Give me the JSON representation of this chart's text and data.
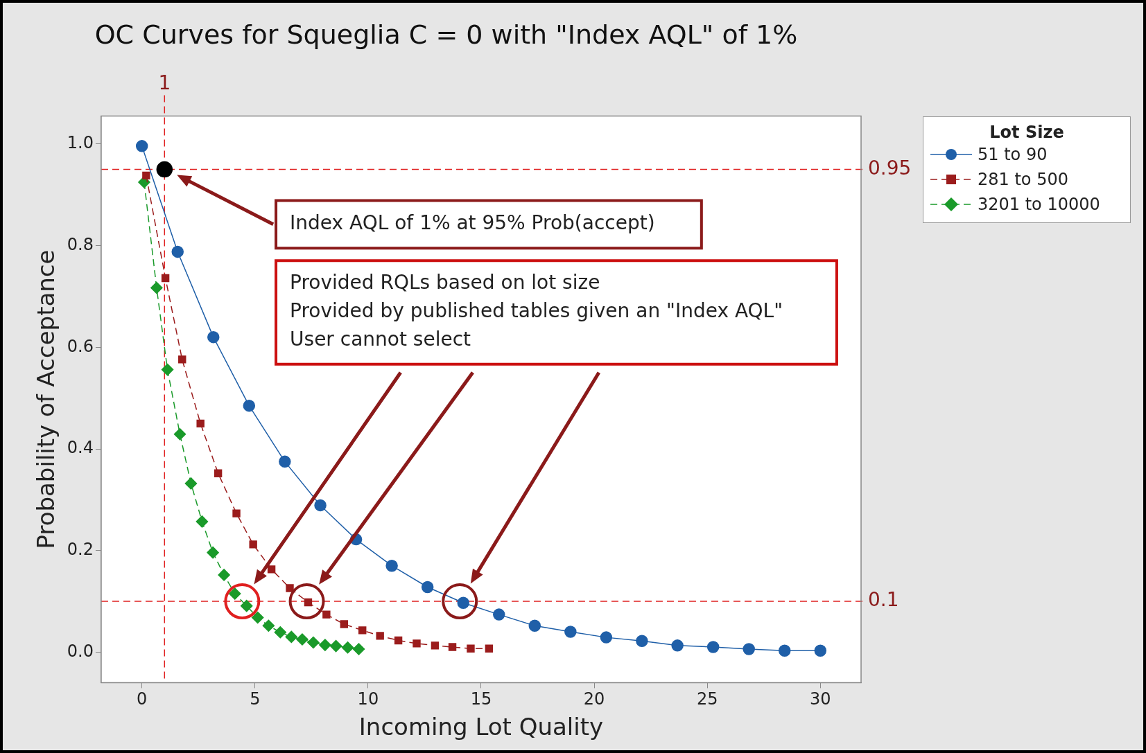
{
  "chart_data": {
    "type": "line",
    "title": "OC Curves for Squeglia C = 0 with \"Index AQL\" of 1%",
    "xlabel": "Incoming Lot Quality",
    "ylabel": "Probability of Acceptance",
    "legend_title": "Lot Size",
    "legend": "top right",
    "grid": false,
    "xlim": [
      -1.8,
      31.8
    ],
    "xticks": [
      0,
      5,
      10,
      15,
      20,
      25,
      30
    ],
    "ylim": [
      -0.06,
      1.055
    ],
    "yticks": [
      {
        "value": 0,
        "label": "0.0"
      },
      0.2,
      0.4,
      0.6,
      0.8,
      {
        "value": 1,
        "label": "1.0"
      }
    ],
    "series": [
      {
        "name": "51 to 90",
        "color": "#1f5fa8",
        "marker": "circle",
        "line_style": "solid",
        "x": [
          0,
          1.58,
          3.16,
          4.74,
          6.32,
          7.89,
          9.47,
          11.05,
          12.63,
          14.21,
          15.79,
          17.37,
          18.95,
          20.53,
          22.11,
          23.68,
          25.26,
          26.84,
          28.42,
          30
        ],
        "values": [
          0.996,
          0.788,
          0.62,
          0.485,
          0.375,
          0.289,
          0.222,
          0.17,
          0.128,
          0.097,
          0.074,
          0.052,
          0.04,
          0.029,
          0.022,
          0.013,
          0.01,
          0.006,
          0.003,
          0.003
        ]
      },
      {
        "name": "281 to 500",
        "color": "#9b1c1c",
        "marker": "square",
        "line_style": "dashed",
        "x": [
          0.19,
          1.04,
          1.78,
          2.59,
          3.37,
          4.18,
          4.92,
          5.73,
          6.54,
          7.35,
          8.16,
          8.94,
          9.75,
          10.53,
          11.34,
          12.15,
          12.96,
          13.73,
          14.54,
          15.35
        ],
        "values": [
          0.938,
          0.736,
          0.576,
          0.45,
          0.352,
          0.273,
          0.212,
          0.163,
          0.126,
          0.098,
          0.074,
          0.055,
          0.043,
          0.032,
          0.023,
          0.017,
          0.013,
          0.01,
          0.007,
          0.007
        ]
      },
      {
        "name": "3201 to 10000",
        "color": "#1a9a2a",
        "marker": "diamond",
        "line_style": "dashed",
        "x": [
          0.1,
          0.65,
          1.13,
          1.68,
          2.17,
          2.66,
          3.14,
          3.63,
          4.11,
          4.63,
          5.12,
          5.6,
          6.12,
          6.61,
          7.09,
          7.58,
          8.1,
          8.58,
          9.1,
          9.59
        ],
        "values": [
          0.925,
          0.717,
          0.556,
          0.429,
          0.332,
          0.257,
          0.196,
          0.152,
          0.115,
          0.091,
          0.068,
          0.052,
          0.039,
          0.03,
          0.025,
          0.019,
          0.014,
          0.012,
          0.009,
          0.006
        ]
      },
      {
        "type": "scatter",
        "color": "#000000",
        "marker": "circle",
        "x": [
          1
        ],
        "values": [
          0.95
        ]
      }
    ],
    "ref_lines": [
      {
        "axis": "x",
        "value": 1,
        "label": "1",
        "color": "#e02020",
        "line_style": "dashed"
      },
      {
        "axis": "y",
        "value": 0.95,
        "label": "0.95",
        "color": "#e02020",
        "line_style": "dashed"
      },
      {
        "axis": "y",
        "value": 0.1,
        "label": "0.1",
        "color": "#e02020",
        "line_style": "dashed"
      }
    ],
    "annotations": [
      "Index AQL of 1% at 95% Prob(accept)",
      "Provided RQLs based on lot size\nProvided by published tables given an \"Index AQL\"\nUser cannot select"
    ]
  }
}
